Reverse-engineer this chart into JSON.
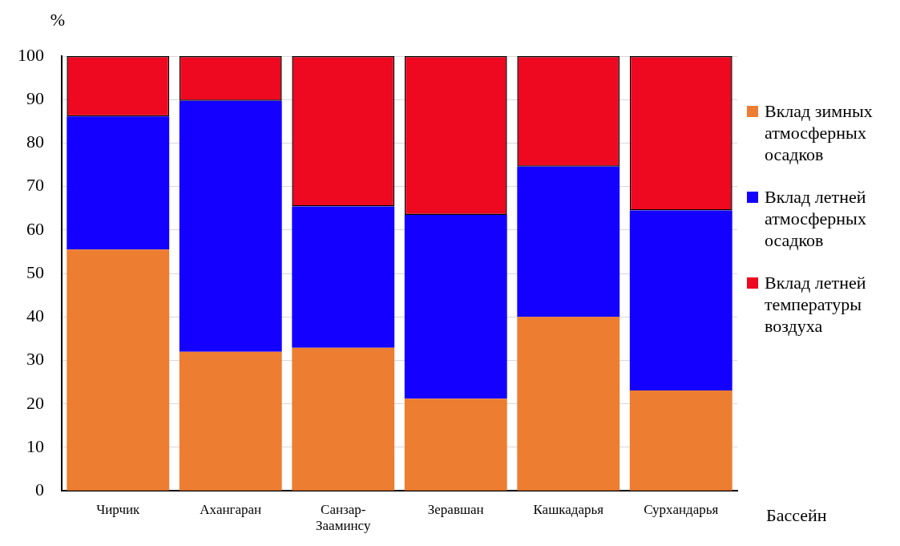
{
  "chart_data": {
    "type": "bar",
    "stacked": true,
    "xlabel": "Бассейн",
    "ylabel": "%",
    "categories": [
      "Чирчик",
      "Ахангаран",
      "Санзар-Зааминсу",
      "Зеравшан",
      "Кашкадарья",
      "Сурхандарья"
    ],
    "series": [
      {
        "name": "Вклад зимных атмосферных осадков",
        "color": "#ed7d31",
        "values": [
          55.5,
          32,
          32.9,
          21.2,
          40,
          23.1
        ]
      },
      {
        "name": "Вклад летней атмосферных осадков",
        "color": "#1400ff",
        "values": [
          30.6,
          57.7,
          32.5,
          42.3,
          34.6,
          41.4
        ]
      },
      {
        "name": "Вклад летней температуры воздуха",
        "color": "#ee0820",
        "values": [
          13.9,
          10.3,
          34.6,
          36.5,
          25.4,
          35.5
        ]
      }
    ],
    "ylim": [
      0,
      100
    ],
    "yticks": [
      0,
      10,
      20,
      30,
      40,
      50,
      60,
      70,
      80,
      90,
      100
    ],
    "grid": "y",
    "legend": "right"
  }
}
